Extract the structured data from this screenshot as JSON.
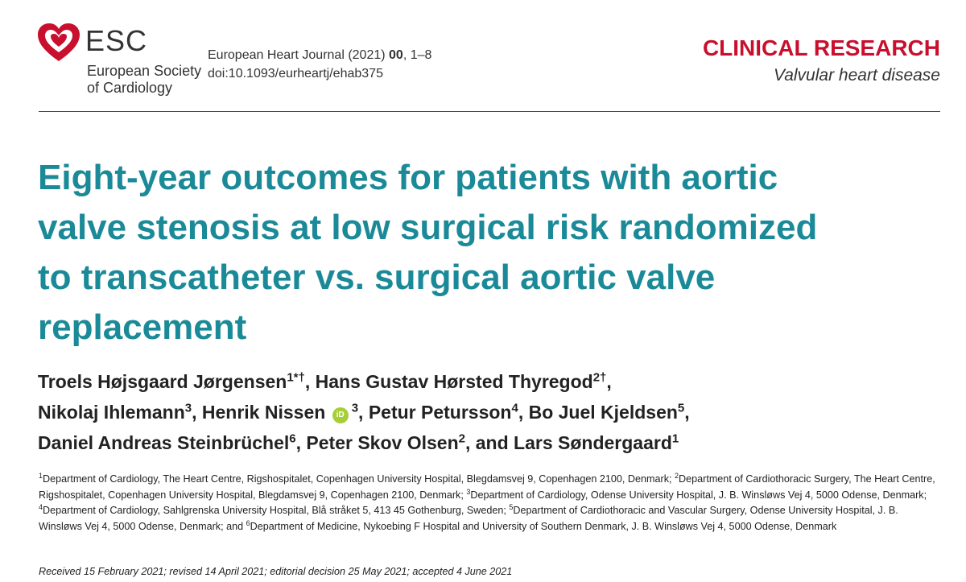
{
  "header": {
    "logo": {
      "abbr": "ESC",
      "line1": "European Society",
      "line2": "of Cardiology"
    },
    "journal": {
      "name": "European Heart Journal (2021)",
      "volume": "00",
      "pages": ", 1–8",
      "doi": "doi:10.1093/eurheartj/ehab375"
    },
    "section": "CLINICAL RESEARCH",
    "subsection": "Valvular heart disease"
  },
  "title_lines": [
    "Eight-year outcomes for patients with aortic",
    "valve stenosis at low surgical risk randomized",
    "to transcatheter vs. surgical aortic valve",
    "replacement"
  ],
  "author_lines": [
    [
      {
        "name": "Troels Højsgaard Jørgensen",
        "sup": "1*†",
        "after": ", "
      },
      {
        "name": "Hans Gustav Hørsted Thyregod",
        "sup": "2†",
        "after": ","
      }
    ],
    [
      {
        "name": "Nikolaj Ihlemann",
        "sup": "3",
        "after": ", "
      },
      {
        "name": "Henrik Nissen",
        "orcid": "iD",
        "sup": "3",
        "after": ", "
      },
      {
        "name": "Petur Petursson",
        "sup": "4",
        "after": ", "
      },
      {
        "name": "Bo Juel Kjeldsen",
        "sup": "5",
        "after": ","
      }
    ],
    [
      {
        "name": "Daniel Andreas Steinbrüchel",
        "sup": "6",
        "after": ", "
      },
      {
        "name": "Peter Skov Olsen",
        "sup": "2",
        "after": ", and "
      },
      {
        "name": "Lars Søndergaard",
        "sup": "1"
      }
    ]
  ],
  "affiliations": [
    {
      "num": "1",
      "text": "Department of Cardiology, The Heart Centre, Rigshospitalet, Copenhagen University Hospital, Blegdamsvej 9, Copenhagen 2100, Denmark; "
    },
    {
      "num": "2",
      "text": "Department of Cardiothoracic Surgery, The Heart Centre, Rigshospitalet, Copenhagen University Hospital, Blegdamsvej 9, Copenhagen 2100, Denmark; "
    },
    {
      "num": "3",
      "text": "Department of Cardiology, Odense University Hospital, J. B. Winsløws Vej 4, 5000 Odense, Denmark; "
    },
    {
      "num": "4",
      "text": "Department of Cardiology, Sahlgrenska University Hospital, Blå stråket 5, 413 45 Gothenburg, Sweden; "
    },
    {
      "num": "5",
      "text": "Department of Cardiothoracic and Vascular Surgery, Odense University Hospital, J. B. Winsløws Vej 4, 5000 Odense, Denmark; and "
    },
    {
      "num": "6",
      "text": "Department of Medicine, Nykoebing F Hospital and University of Southern Denmark, J. B. Winsløws Vej 4, 5000 Odense, Denmark"
    }
  ],
  "dates": "Received 15 February 2021; revised 14 April 2021; editorial decision 25 May 2021; accepted 4 June 2021"
}
